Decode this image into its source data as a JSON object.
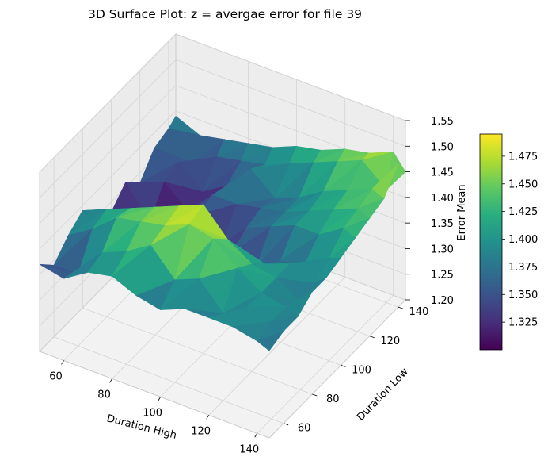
{
  "chart_data": {
    "type": "surface3d",
    "title": "3D Surface Plot: z = avergae error for file 39",
    "xlabel": "Duration High",
    "ylabel": "Duration Low",
    "zlabel": "Error Mean",
    "x_ticks": [
      60,
      80,
      100,
      120,
      140
    ],
    "y_ticks": [
      60,
      80,
      100,
      120,
      140
    ],
    "z_ticks": [
      "1.20",
      "1.25",
      "1.30",
      "1.35",
      "1.40",
      "1.45",
      "1.50",
      "1.55"
    ],
    "xlim": [
      50,
      145
    ],
    "ylim": [
      50,
      145
    ],
    "zlim": [
      1.2,
      1.55
    ],
    "colormap": "viridis",
    "colorbar": {
      "ticks": [
        "1.325",
        "1.350",
        "1.375",
        "1.400",
        "1.425",
        "1.450",
        "1.475"
      ],
      "range": [
        1.3,
        1.495
      ]
    },
    "grid": true,
    "x": [
      50,
      60,
      70,
      80,
      90,
      100,
      110,
      120,
      130,
      140,
      145
    ],
    "y": [
      50,
      60,
      70,
      80,
      90,
      100,
      110,
      120,
      130,
      140,
      145
    ],
    "z": [
      [
        1.37,
        1.36,
        1.39,
        1.4,
        1.38,
        1.37,
        1.39,
        1.39,
        1.39,
        1.38,
        1.37
      ],
      [
        1.34,
        1.34,
        1.4,
        1.42,
        1.45,
        1.4,
        1.42,
        1.37,
        1.4,
        1.39,
        1.38
      ],
      [
        1.37,
        1.4,
        1.44,
        1.45,
        1.46,
        1.48,
        1.47,
        1.43,
        1.4,
        1.39,
        1.38
      ],
      [
        1.39,
        1.41,
        1.43,
        1.45,
        1.47,
        1.49,
        1.44,
        1.41,
        1.4,
        1.37,
        1.4
      ],
      [
        1.36,
        1.37,
        1.38,
        1.35,
        1.34,
        1.36,
        1.35,
        1.38,
        1.4,
        1.38,
        1.4
      ],
      [
        1.33,
        1.32,
        1.31,
        1.3,
        1.32,
        1.34,
        1.33,
        1.36,
        1.37,
        1.4,
        1.41
      ],
      [
        1.36,
        1.3,
        1.32,
        1.35,
        1.31,
        1.36,
        1.38,
        1.4,
        1.4,
        1.43,
        1.42
      ],
      [
        1.33,
        1.35,
        1.31,
        1.36,
        1.36,
        1.37,
        1.38,
        1.4,
        1.42,
        1.44,
        1.43
      ],
      [
        1.37,
        1.36,
        1.32,
        1.35,
        1.4,
        1.36,
        1.38,
        1.41,
        1.43,
        1.45,
        1.44
      ],
      [
        1.38,
        1.33,
        1.36,
        1.37,
        1.38,
        1.4,
        1.42,
        1.44,
        1.46,
        1.42,
        1.48
      ],
      [
        1.39,
        1.37,
        1.38,
        1.39,
        1.4,
        1.42,
        1.43,
        1.45,
        1.46,
        1.48,
        1.45
      ]
    ]
  }
}
